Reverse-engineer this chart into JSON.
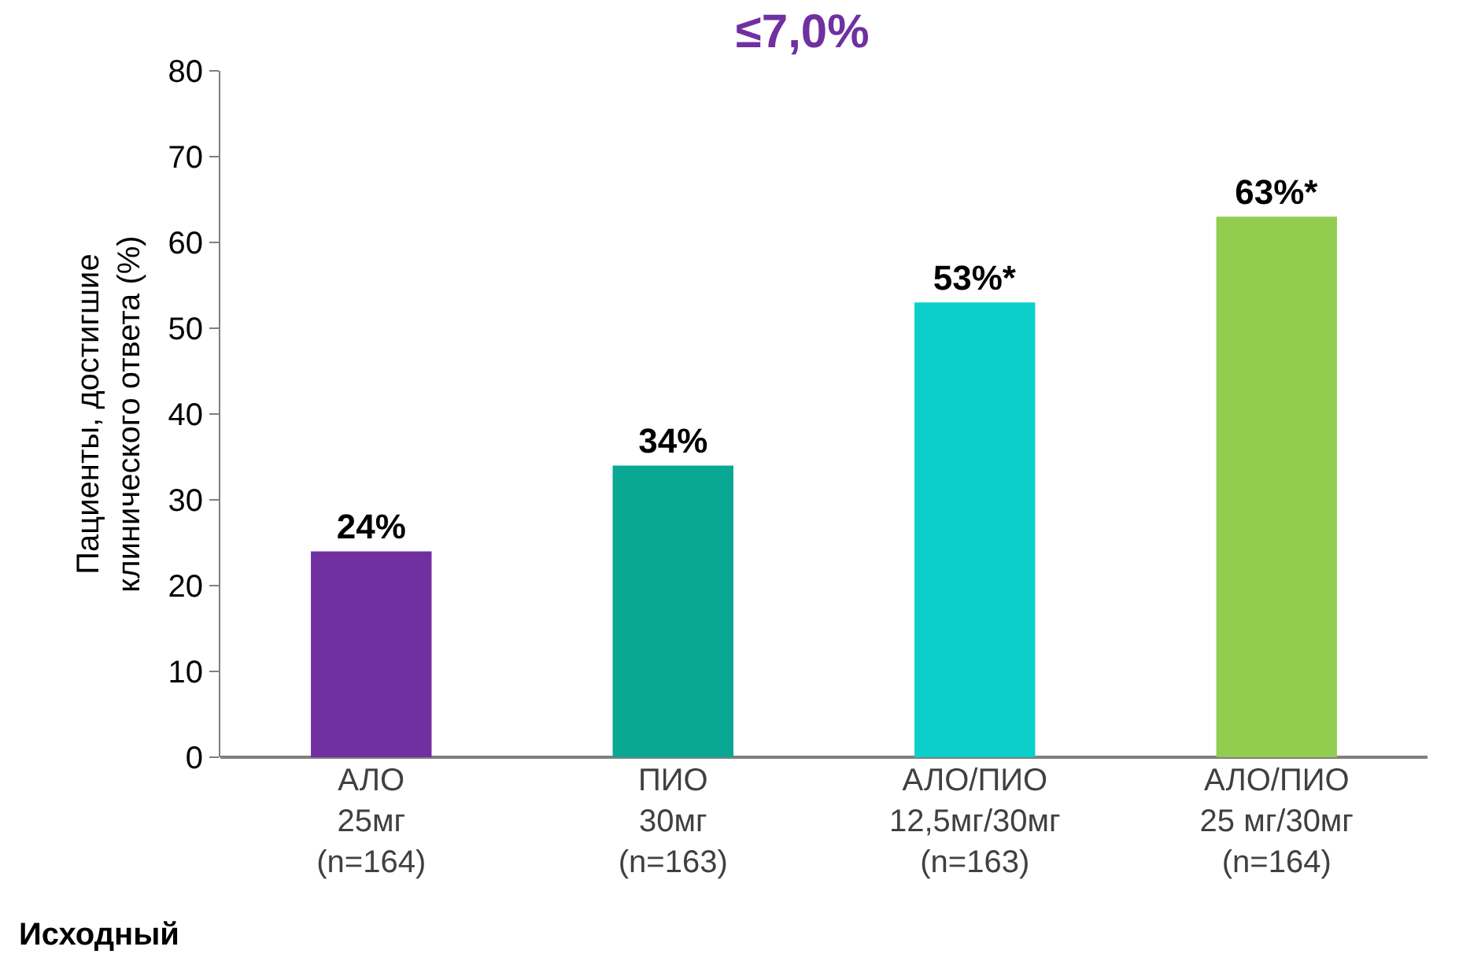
{
  "chart_data": {
    "type": "bar",
    "title": "≤7,0%",
    "ylabel": "Пациенты, достигшие\nклинического ответа (%)",
    "categories": [
      "АЛО\n25мг\n(n=164)",
      "ПИО\n30мг\n(n=163)",
      "АЛО/ПИО\n12,5мг/30мг\n(n=163)",
      "АЛО/ПИО\n25 мг/30мг\n(n=164)"
    ],
    "values": [
      24,
      34,
      53,
      63
    ],
    "colors": [
      "#7030a0",
      "#08a894",
      "#0bcfcb",
      "#92cd50"
    ],
    "value_labels": [
      "24%",
      "34%",
      "53%*",
      "63%*"
    ],
    "ylim": [
      0,
      80
    ],
    "yticks": [
      0,
      10,
      20,
      30,
      40,
      50,
      60,
      70,
      80
    ],
    "annotations": [
      "Исходный"
    ]
  }
}
